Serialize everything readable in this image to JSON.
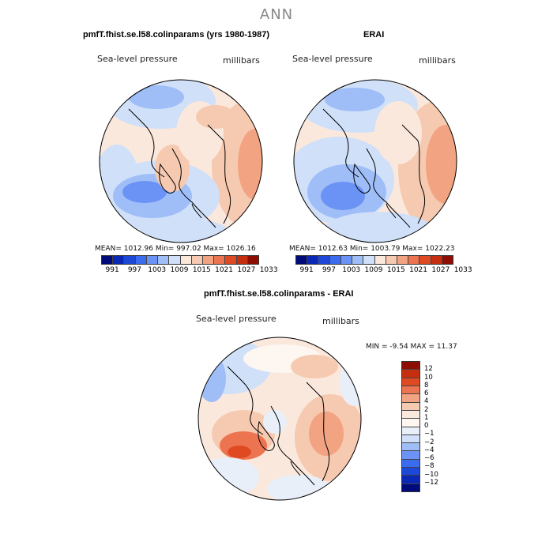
{
  "title": "ANN",
  "panels": [
    {
      "title": "pmfT.fhist.se.l58.colinparams (yrs 1980-1987)",
      "subtitle_left": "Sea-level pressure",
      "subtitle_right": "millibars",
      "stats": "MEAN=  1012.96   Min=  997.02   Max=  1026.16"
    },
    {
      "title": "ERAI",
      "subtitle_left": "Sea-level pressure",
      "subtitle_right": "millibars",
      "stats": "MEAN=  1012.63   Min=  1003.79   Max=  1022.23"
    },
    {
      "title": "pmfT.fhist.se.l58.colinparams - ERAI",
      "subtitle_left": "Sea-level pressure",
      "subtitle_right": "millibars",
      "stats": "MIN =   -9.54  MAX =   11.37"
    }
  ],
  "colorbar_abs": {
    "colors": [
      "#000a7a",
      "#0a27b5",
      "#1d48d8",
      "#3a6cf0",
      "#6b93f5",
      "#9fbdf7",
      "#cfe0f8",
      "#fbe8dc",
      "#f6c9b1",
      "#f2a382",
      "#ec7450",
      "#e04a22",
      "#c52e0e",
      "#8d0d03"
    ],
    "labels": [
      "991",
      "997",
      "1003",
      "1009",
      "1015",
      "1021",
      "1027",
      "1033"
    ]
  },
  "colorbar_diff": {
    "colors": [
      "#8d0d03",
      "#c52e0e",
      "#e04a22",
      "#ec7450",
      "#f2a382",
      "#f6c9b1",
      "#fbe8dc",
      "#fdf6f1",
      "#e8eff9",
      "#cfe0f8",
      "#9fbdf7",
      "#6b93f5",
      "#3a6cf0",
      "#1d48d8",
      "#0a27b5",
      "#000a7a"
    ],
    "labels": [
      "12",
      "10",
      "8",
      "6",
      "4",
      "2",
      "1",
      "0",
      "−1",
      "−2",
      "−4",
      "−6",
      "−8",
      "−10",
      "−12"
    ]
  }
}
